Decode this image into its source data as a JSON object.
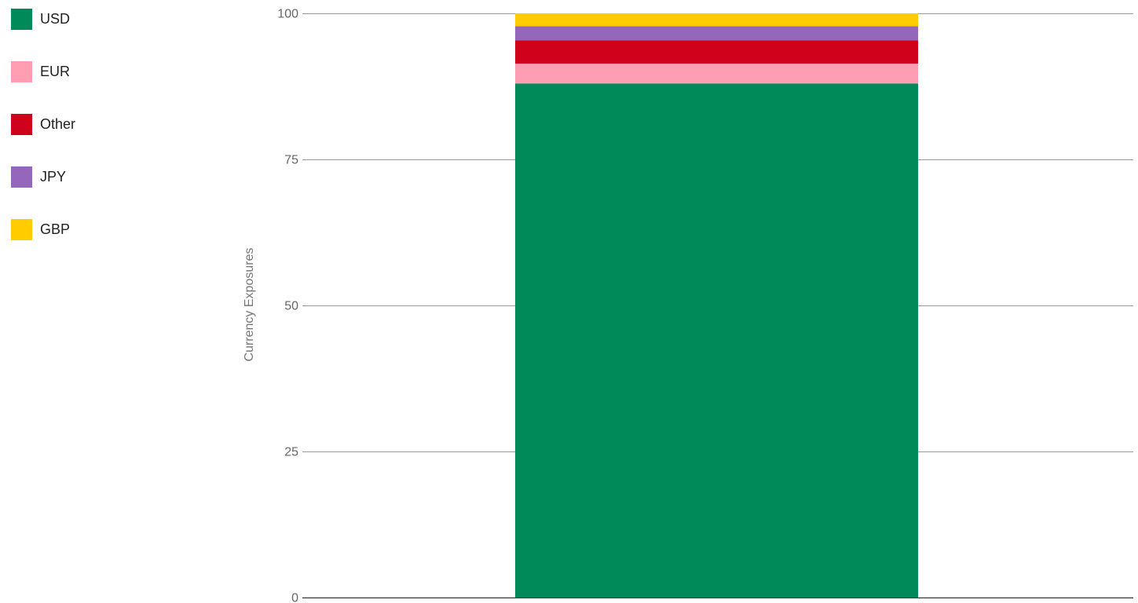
{
  "chart_data": {
    "type": "bar",
    "stacked": true,
    "categories": [
      ""
    ],
    "series": [
      {
        "name": "USD",
        "color": "#008a5a",
        "values": [
          88.0
        ]
      },
      {
        "name": "EUR",
        "color": "#ff9eb3",
        "values": [
          3.4
        ]
      },
      {
        "name": "Other",
        "color": "#d0021b",
        "values": [
          4.0
        ]
      },
      {
        "name": "JPY",
        "color": "#9467bd",
        "values": [
          2.4
        ]
      },
      {
        "name": "GBP",
        "color": "#ffcc00",
        "values": [
          2.2
        ]
      }
    ],
    "title": "",
    "xlabel": "",
    "ylabel": "Currency Exposures",
    "ylim": [
      0,
      100
    ],
    "yticks": [
      0,
      25,
      50,
      75,
      100
    ],
    "grid": true,
    "legend_position": "top-left"
  }
}
